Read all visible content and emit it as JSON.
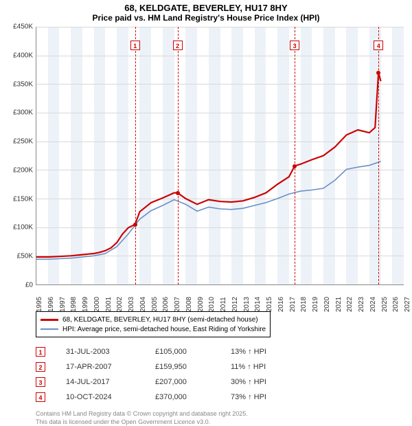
{
  "title1": "68, KELDGATE, BEVERLEY, HU17 8HY",
  "title2": "Price paid vs. HM Land Registry's House Price Index (HPI)",
  "chart": {
    "background_color": "#ffffff",
    "band_color": "#edf2f8",
    "grid_color": "#d9d9d9",
    "axis_color": "#888888",
    "y_min": 0,
    "y_max": 450000,
    "y_tick_step": 50000,
    "y_ticks": [
      "£0",
      "£50K",
      "£100K",
      "£150K",
      "£200K",
      "£250K",
      "£300K",
      "£350K",
      "£400K",
      "£450K"
    ],
    "x_min": 1995,
    "x_max": 2027,
    "x_ticks": [
      1995,
      1996,
      1997,
      1998,
      1999,
      2000,
      2001,
      2002,
      2003,
      2004,
      2005,
      2006,
      2007,
      2008,
      2009,
      2010,
      2011,
      2012,
      2013,
      2014,
      2015,
      2016,
      2017,
      2018,
      2019,
      2020,
      2021,
      2022,
      2023,
      2024,
      2025,
      2026,
      2027
    ],
    "series": {
      "price_paid": {
        "label": "68, KELDGATE, BEVERLEY, HU17 8HY (semi-detached house)",
        "color": "#cc0000",
        "line_width": 2.2,
        "years": [
          1995.0,
          1996.0,
          1997.0,
          1998.0,
          1999.0,
          2000.0,
          2000.5,
          2001.0,
          2001.5,
          2002.0,
          2002.5,
          2003.0,
          2003.6,
          2004.0,
          2005.0,
          2006.0,
          2007.0,
          2007.3,
          2008.0,
          2009.0,
          2010.0,
          2011.0,
          2012.0,
          2013.0,
          2014.0,
          2015.0,
          2016.0,
          2017.0,
          2017.5,
          2018.0,
          2019.0,
          2020.0,
          2021.0,
          2022.0,
          2023.0,
          2024.0,
          2024.5,
          2024.8,
          2025.0
        ],
        "values": [
          48000,
          48000,
          49000,
          50000,
          52000,
          54000,
          56000,
          59000,
          64000,
          73000,
          88000,
          99000,
          105000,
          127000,
          143000,
          151000,
          160000,
          159950,
          150000,
          140000,
          148000,
          145000,
          144000,
          146000,
          152000,
          160000,
          175000,
          188000,
          207000,
          210000,
          218000,
          225000,
          240000,
          261000,
          270000,
          265000,
          274000,
          370000,
          355000
        ]
      },
      "hpi": {
        "label": "HPI: Average price, semi-detached house, East Riding of Yorkshire",
        "color": "#6a8fc5",
        "line_width": 1.6,
        "years": [
          1995.0,
          1996.0,
          1997.0,
          1998.0,
          1999.0,
          2000.0,
          2001.0,
          2002.0,
          2003.0,
          2004.0,
          2005.0,
          2006.0,
          2007.0,
          2008.0,
          2009.0,
          2010.0,
          2011.0,
          2012.0,
          2013.0,
          2014.0,
          2015.0,
          2016.0,
          2017.0,
          2018.0,
          2019.0,
          2020.0,
          2021.0,
          2022.0,
          2023.0,
          2024.0,
          2025.0
        ],
        "values": [
          44000,
          44000,
          45000,
          46000,
          48000,
          50000,
          54000,
          66000,
          88000,
          114000,
          129000,
          138000,
          148000,
          140000,
          128000,
          135000,
          132000,
          131000,
          133000,
          138000,
          143000,
          150000,
          158000,
          163000,
          165000,
          168000,
          182000,
          201000,
          205000,
          208000,
          215000
        ]
      }
    },
    "markers": [
      {
        "n": "1",
        "year": 2003.6,
        "value": 105000,
        "box_y": 418000
      },
      {
        "n": "2",
        "year": 2007.3,
        "value": 159950,
        "box_y": 418000
      },
      {
        "n": "3",
        "year": 2017.5,
        "value": 207000,
        "box_y": 418000
      },
      {
        "n": "4",
        "year": 2024.8,
        "value": 370000,
        "box_y": 418000
      }
    ]
  },
  "legend": {
    "items": [
      {
        "color": "#cc0000",
        "width": 3,
        "text": "68, KELDGATE, BEVERLEY, HU17 8HY (semi-detached house)"
      },
      {
        "color": "#6a8fc5",
        "width": 2,
        "text": "HPI: Average price, semi-detached house, East Riding of Yorkshire"
      }
    ]
  },
  "events": [
    {
      "n": "1",
      "date": "31-JUL-2003",
      "price": "£105,000",
      "pct": "13% ↑ HPI"
    },
    {
      "n": "2",
      "date": "17-APR-2007",
      "price": "£159,950",
      "pct": "11% ↑ HPI"
    },
    {
      "n": "3",
      "date": "14-JUL-2017",
      "price": "£207,000",
      "pct": "30% ↑ HPI"
    },
    {
      "n": "4",
      "date": "10-OCT-2024",
      "price": "£370,000",
      "pct": "73% ↑ HPI"
    }
  ],
  "footer": {
    "line1": "Contains HM Land Registry data © Crown copyright and database right 2025.",
    "line2": "This data is licensed under the Open Government Licence v3.0."
  }
}
